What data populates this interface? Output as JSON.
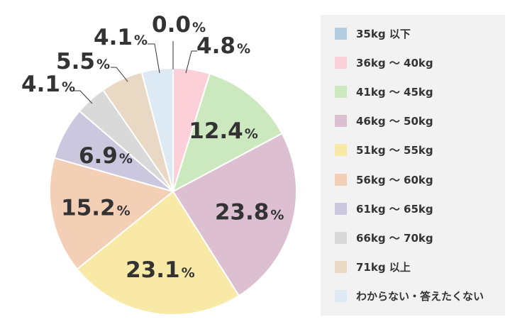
{
  "chart_data": {
    "type": "pie",
    "title": "",
    "start": "top",
    "direction": "clockwise",
    "categories": [
      "35kg 以下",
      "36kg ～ 40kg",
      "41kg ～ 45kg",
      "46kg ～ 50kg",
      "51kg ～ 55kg",
      "56kg ～ 60kg",
      "61kg ～ 65kg",
      "66kg ～ 70kg",
      "71kg 以上",
      "わからない・答えたくない"
    ],
    "values": [
      0.0,
      4.8,
      12.4,
      23.8,
      23.1,
      15.2,
      6.9,
      4.1,
      5.5,
      4.1
    ],
    "value_labels": [
      "0.0",
      "4.8",
      "12.4",
      "23.8",
      "23.1",
      "15.2",
      "6.9",
      "4.1",
      "5.5",
      "4.1"
    ],
    "unit": "%",
    "colors": [
      "#b3cde3",
      "#fbd0d8",
      "#cce8bf",
      "#dcbfd0",
      "#f8e9a6",
      "#f3cfb6",
      "#cbc7de",
      "#d9d9d9",
      "#e8d8c4",
      "#dde9f3"
    ],
    "legend_position": "right"
  }
}
